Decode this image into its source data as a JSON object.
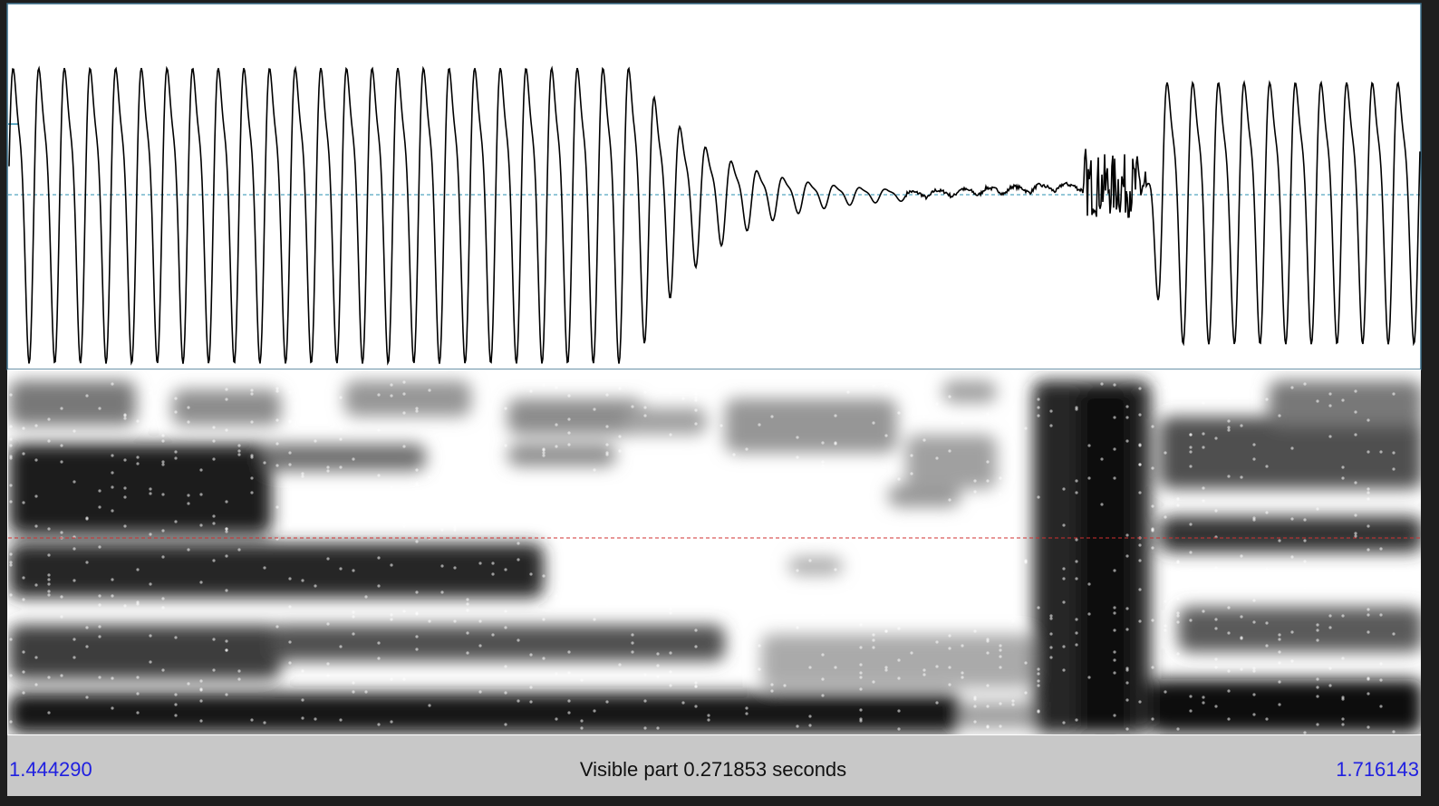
{
  "window": {
    "start_time": "1.444290",
    "visible_part": "Visible part 0.271853 seconds",
    "end_time": "1.716143"
  }
}
